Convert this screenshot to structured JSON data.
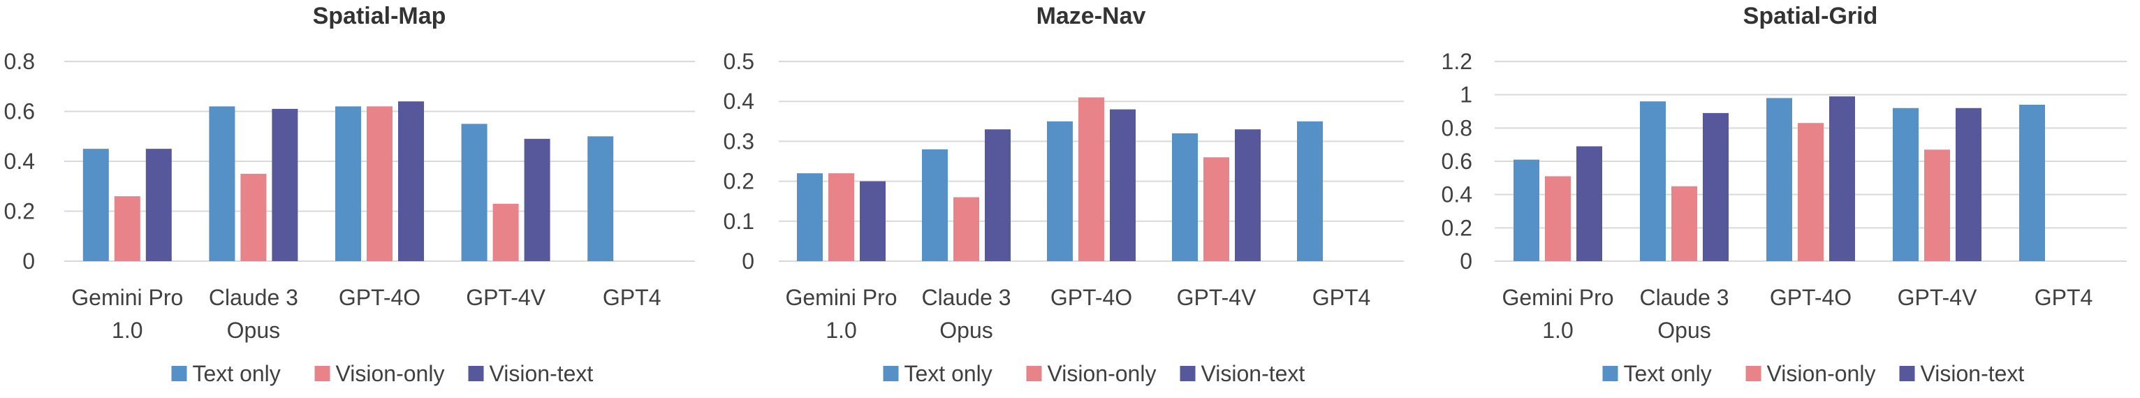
{
  "colors": {
    "text_only": "#5591c6",
    "vision_only": "#e8838a",
    "vision_text": "#56589b"
  },
  "chart_data": [
    {
      "type": "bar",
      "title": "Spatial-Map",
      "categories": [
        [
          "Gemini Pro",
          "1.0"
        ],
        [
          "Claude 3",
          "Opus"
        ],
        [
          "GPT-4O"
        ],
        [
          "GPT-4V"
        ],
        [
          "GPT4"
        ]
      ],
      "ylim": [
        0,
        0.8
      ],
      "yticks": [
        "0",
        "0.2",
        "0.4",
        "0.6",
        "0.8"
      ],
      "grid": true,
      "legend_position": "bottom",
      "series": [
        {
          "name": "Text only",
          "values": [
            0.45,
            0.62,
            0.62,
            0.55,
            0.5
          ]
        },
        {
          "name": "Vision-only",
          "values": [
            0.26,
            0.35,
            0.62,
            0.23,
            null
          ]
        },
        {
          "name": "Vision-text",
          "values": [
            0.45,
            0.61,
            0.64,
            0.49,
            null
          ]
        }
      ]
    },
    {
      "type": "bar",
      "title": "Maze-Nav",
      "categories": [
        [
          "Gemini Pro",
          "1.0"
        ],
        [
          "Claude 3",
          "Opus"
        ],
        [
          "GPT-4O"
        ],
        [
          "GPT-4V"
        ],
        [
          "GPT4"
        ]
      ],
      "ylim": [
        0,
        0.5
      ],
      "yticks": [
        "0",
        "0.1",
        "0.2",
        "0.3",
        "0.4",
        "0.5"
      ],
      "grid": true,
      "legend_position": "bottom",
      "series": [
        {
          "name": "Text only",
          "values": [
            0.22,
            0.28,
            0.35,
            0.32,
            0.35
          ]
        },
        {
          "name": "Vision-only",
          "values": [
            0.22,
            0.16,
            0.41,
            0.26,
            null
          ]
        },
        {
          "name": "Vision-text",
          "values": [
            0.2,
            0.33,
            0.38,
            0.33,
            null
          ]
        }
      ]
    },
    {
      "type": "bar",
      "title": "Spatial-Grid",
      "categories": [
        [
          "Gemini Pro",
          "1.0"
        ],
        [
          "Claude 3",
          "Opus"
        ],
        [
          "GPT-4O"
        ],
        [
          "GPT-4V"
        ],
        [
          "GPT4"
        ]
      ],
      "ylim": [
        0,
        1.2
      ],
      "yticks": [
        "0",
        "0.2",
        "0.4",
        "0.6",
        "0.8",
        "1",
        "1.2"
      ],
      "grid": true,
      "legend_position": "bottom",
      "series": [
        {
          "name": "Text only",
          "values": [
            0.61,
            0.96,
            0.98,
            0.92,
            0.94
          ]
        },
        {
          "name": "Vision-only",
          "values": [
            0.51,
            0.45,
            0.83,
            0.67,
            null
          ]
        },
        {
          "name": "Vision-text",
          "values": [
            0.69,
            0.89,
            0.99,
            0.92,
            null
          ]
        }
      ]
    }
  ]
}
